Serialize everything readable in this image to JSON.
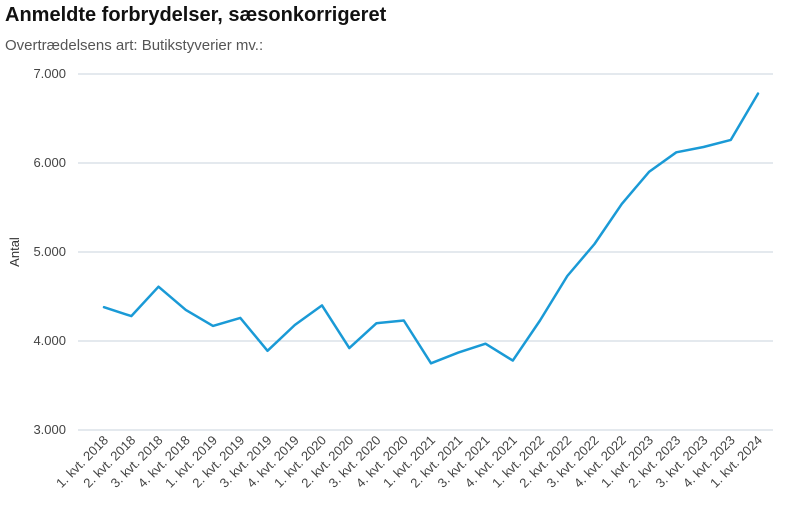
{
  "title": "Anmeldte forbrydelser, sæsonkorrigeret",
  "subtitle": "Overtrædelsens art: Butikstyverier mv.:",
  "chart_data": {
    "type": "line",
    "title": "Anmeldte forbrydelser, sæsonkorrigeret",
    "subtitle": "Overtrædelsens art: Butikstyverier mv.:",
    "xlabel": "",
    "ylabel": "Antal",
    "ylim": [
      3000,
      7000
    ],
    "yticks": [
      3000,
      4000,
      5000,
      6000,
      7000
    ],
    "ytick_labels": [
      "3.000",
      "4.000",
      "5.000",
      "6.000",
      "7.000"
    ],
    "grid": true,
    "line_color": "#1a9ad6",
    "grid_color": "#c9d3de",
    "categories": [
      "1. kvt. 2018",
      "2. kvt. 2018",
      "3. kvt. 2018",
      "4. kvt. 2018",
      "1. kvt. 2019",
      "2. kvt. 2019",
      "3. kvt. 2019",
      "4. kvt. 2019",
      "1. kvt. 2020",
      "2. kvt. 2020",
      "3. kvt. 2020",
      "4. kvt. 2020",
      "1. kvt. 2021",
      "2. kvt. 2021",
      "3. kvt. 2021",
      "4. kvt. 2021",
      "1. kvt. 2022",
      "2. kvt. 2022",
      "3. kvt. 2022",
      "4. kvt. 2022",
      "1. kvt. 2023",
      "2. kvt. 2023",
      "3. kvt. 2023",
      "4. kvt. 2023",
      "1. kvt. 2024"
    ],
    "values": [
      4380,
      4280,
      4610,
      4350,
      4170,
      4260,
      3890,
      4180,
      4400,
      3920,
      4200,
      4230,
      3750,
      3870,
      3970,
      3780,
      4230,
      4730,
      5090,
      5540,
      5900,
      6120,
      6180,
      6260,
      6780
    ]
  }
}
